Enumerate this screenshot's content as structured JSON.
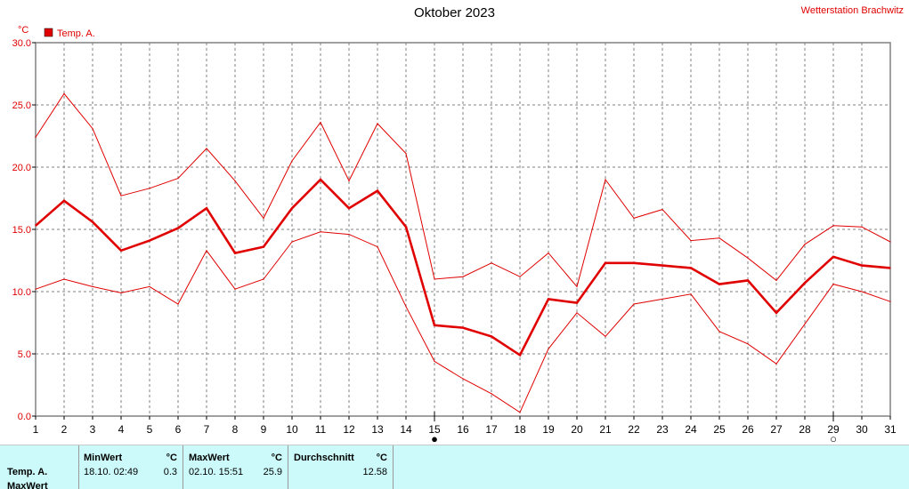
{
  "chart_data": {
    "type": "line",
    "title": "Oktober 2023",
    "station": "Wetterstation Brachwitz",
    "ylabel": "°C",
    "ylim": [
      0,
      30
    ],
    "yticks": [
      "0.0",
      "5.0",
      "10.0",
      "15.0",
      "20.0",
      "25.0",
      "30.0"
    ],
    "grid": true,
    "legend": "top-left",
    "x": [
      1,
      2,
      3,
      4,
      5,
      6,
      7,
      8,
      9,
      10,
      11,
      12,
      13,
      14,
      15,
      16,
      17,
      18,
      19,
      20,
      21,
      22,
      23,
      24,
      25,
      26,
      27,
      28,
      29,
      30,
      31
    ],
    "legend_entries": [
      "Temp. A."
    ],
    "series": [
      {
        "role": "max",
        "color": "#e00000",
        "values": [
          22.4,
          25.9,
          23.1,
          17.7,
          18.3,
          19.1,
          21.5,
          18.9,
          15.9,
          20.5,
          23.6,
          18.9,
          23.5,
          21.1,
          11.0,
          11.2,
          12.3,
          11.2,
          13.1,
          10.4,
          19.0,
          15.9,
          16.6,
          14.1,
          14.3,
          12.7,
          10.9,
          13.8,
          15.3,
          15.2,
          14.0
        ]
      },
      {
        "name": "Temp. A.",
        "role": "mean",
        "color": "#e00000",
        "values": [
          15.3,
          17.3,
          15.6,
          13.3,
          14.1,
          15.1,
          16.7,
          13.1,
          13.6,
          16.7,
          19.0,
          16.7,
          18.1,
          15.2,
          7.3,
          7.1,
          6.4,
          4.9,
          9.4,
          9.1,
          12.3,
          12.3,
          12.1,
          11.9,
          10.6,
          10.9,
          8.3,
          10.7,
          12.8,
          12.1,
          11.9
        ]
      },
      {
        "role": "min",
        "color": "#e00000",
        "values": [
          10.2,
          11.0,
          10.4,
          9.9,
          10.4,
          9.0,
          13.3,
          10.2,
          11.0,
          14.0,
          14.8,
          14.6,
          13.6,
          8.8,
          4.4,
          3.0,
          1.8,
          0.3,
          5.4,
          8.3,
          6.4,
          9.0,
          9.4,
          9.8,
          6.8,
          5.8,
          4.2,
          7.4,
          10.6,
          10.0,
          9.2
        ]
      }
    ],
    "moon_markers": [
      {
        "day": 15,
        "phase": "new-moon",
        "symbol": "●"
      },
      {
        "day": 29,
        "phase": "full-moon",
        "symbol": "○"
      }
    ]
  },
  "legend": {
    "label": "Temp. A.",
    "color": "#e00000"
  },
  "stats": {
    "row_label": "Temp. A.",
    "row_label_2": "MaxWert",
    "unit": "°C",
    "min": {
      "header": "MinWert",
      "when": "18.10.  02:49",
      "value": "0.3"
    },
    "max": {
      "header": "MaxWert",
      "when": "02.10.  15:51",
      "value": "25.9"
    },
    "avg": {
      "header": "Durchschnitt",
      "value": "12.58"
    }
  }
}
